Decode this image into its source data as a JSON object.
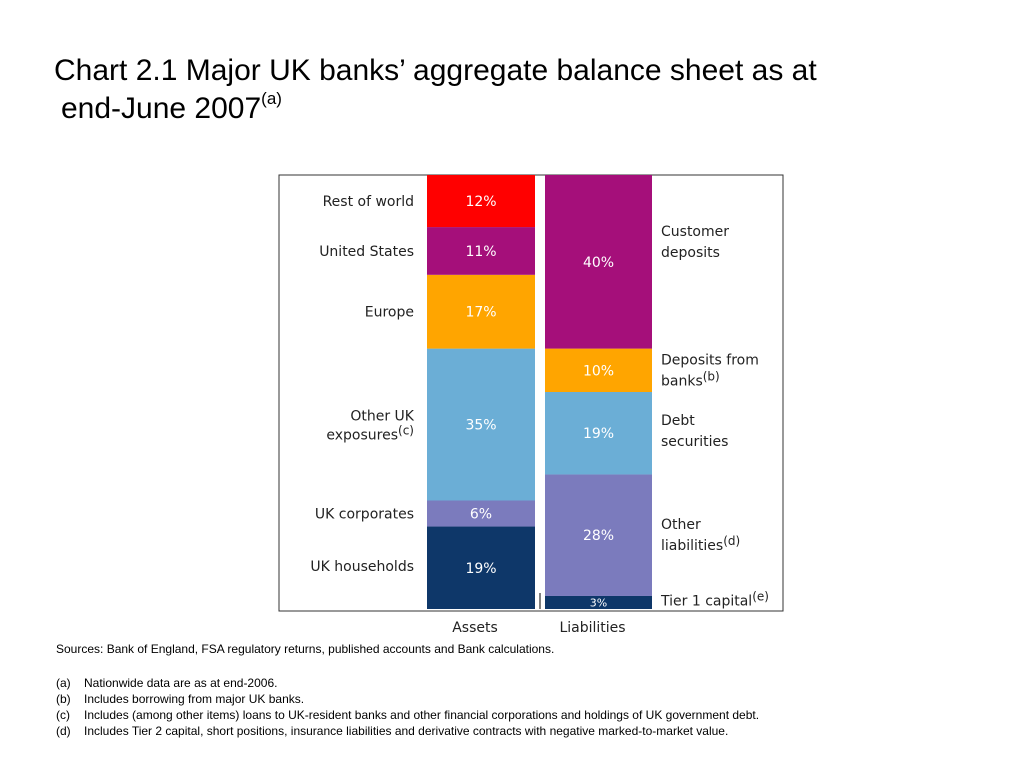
{
  "title": {
    "line1": "Chart 2.1  Major UK banks’ aggregate balance sheet as at",
    "line2": "end-June 2007",
    "footnote_marker": "(a)"
  },
  "chart_data": {
    "type": "bar",
    "stacked": true,
    "normalized_to": 100,
    "categories": [
      "Assets",
      "Liabilities"
    ],
    "series": [
      {
        "bar": "Assets",
        "segments": [
          {
            "name": "UK households",
            "value": 19,
            "label": "19%",
            "color": "#0e3769"
          },
          {
            "name": "UK corporates",
            "value": 6,
            "label": "6%",
            "color": "#7b7bbd"
          },
          {
            "name": "Other UK exposures",
            "marker": "(c)",
            "value": 35,
            "label": "35%",
            "color": "#6baed6"
          },
          {
            "name": "Europe",
            "value": 17,
            "label": "17%",
            "color": "#ffa500"
          },
          {
            "name": "United States",
            "value": 11,
            "label": "11%",
            "color": "#a50f7a"
          },
          {
            "name": "Rest of world",
            "value": 12,
            "label": "12%",
            "color": "#ff0000"
          }
        ]
      },
      {
        "bar": "Liabilities",
        "segments": [
          {
            "name": "Tier 1 capital",
            "marker": "(e)",
            "value": 3,
            "label": "3%",
            "color": "#0e3769"
          },
          {
            "name": "Other liabilities",
            "marker": "(d)",
            "value": 28,
            "label": "28%",
            "color": "#7b7bbd"
          },
          {
            "name": "Debt securities",
            "value": 19,
            "label": "19%",
            "color": "#6baed6"
          },
          {
            "name": "Deposits from banks",
            "marker": "(b)",
            "value": 10,
            "label": "10%",
            "color": "#ffa500"
          },
          {
            "name": "Customer deposits",
            "value": 40,
            "label": "40%",
            "color": "#a50f7a"
          }
        ]
      }
    ],
    "ylim": [
      0,
      100
    ],
    "grid": false
  },
  "left_labels": [
    {
      "line1": "Rest of world"
    },
    {
      "line1": "United States"
    },
    {
      "line1": "Europe"
    },
    {
      "line1": "Other UK",
      "line2": "exposures",
      "marker": "(c)"
    },
    {
      "line1": "UK corporates"
    },
    {
      "line1": "UK households"
    }
  ],
  "right_labels": [
    {
      "line1": "Customer",
      "line2": "deposits"
    },
    {
      "line1": "Deposits from",
      "line2": "banks",
      "marker": "(b)"
    },
    {
      "line1": "Debt",
      "line2": "securities"
    },
    {
      "line1": "Other",
      "line2": "liabilities",
      "marker": "(d)"
    },
    {
      "line1": "Tier 1 capital",
      "marker": "(e)"
    }
  ],
  "sources": "Sources:  Bank of England, FSA regulatory returns, published accounts and Bank calculations.",
  "notes": [
    {
      "key": "(a)",
      "text": "Nationwide data are as at end-2006."
    },
    {
      "key": "(b)",
      "text": "Includes borrowing from major UK banks."
    },
    {
      "key": "(c)",
      "text": "Includes (among other items) loans to UK-resident banks and other financial corporations and holdings of UK government debt."
    },
    {
      "key": "(d)",
      "text": "Includes Tier 2 capital, short positions, insurance liabilities and derivative contracts with negative marked-to-market value."
    }
  ]
}
